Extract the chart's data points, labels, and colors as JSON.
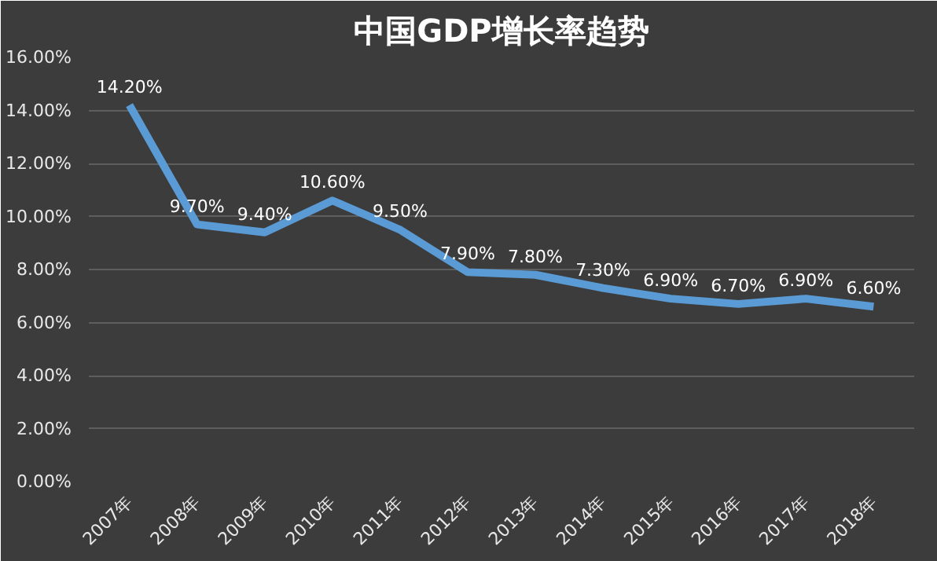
{
  "chart_data": {
    "type": "line",
    "title": "中国GDP增长率趋势",
    "categories": [
      "2007年",
      "2008年",
      "2009年",
      "2010年",
      "2011年",
      "2012年",
      "2013年",
      "2014年",
      "2015年",
      "2016年",
      "2017年",
      "2018年"
    ],
    "series": [
      {
        "color": "#5b9bd5",
        "values": [
          14.2,
          9.7,
          9.4,
          10.6,
          9.5,
          7.9,
          7.8,
          7.3,
          6.9,
          6.7,
          6.9,
          6.6
        ],
        "value_labels": [
          "14.20%",
          "9.70%",
          "9.40%",
          "10.60%",
          "9.50%",
          "7.90%",
          "7.80%",
          "7.30%",
          "6.90%",
          "6.70%",
          "6.90%",
          "6.60%"
        ]
      }
    ],
    "ylim": [
      0,
      16
    ],
    "yticks": [
      {
        "value": 0,
        "label": "0.00%"
      },
      {
        "value": 2,
        "label": "2.00%"
      },
      {
        "value": 4,
        "label": "4.00%"
      },
      {
        "value": 6,
        "label": "6.00%"
      },
      {
        "value": 8,
        "label": "8.00%"
      },
      {
        "value": 10,
        "label": "10.00%"
      },
      {
        "value": 12,
        "label": "12.00%"
      },
      {
        "value": 14,
        "label": "14.00%"
      },
      {
        "value": 16,
        "label": "16.00%"
      }
    ],
    "grid": "y",
    "marker": "none",
    "line_style": "solid"
  }
}
